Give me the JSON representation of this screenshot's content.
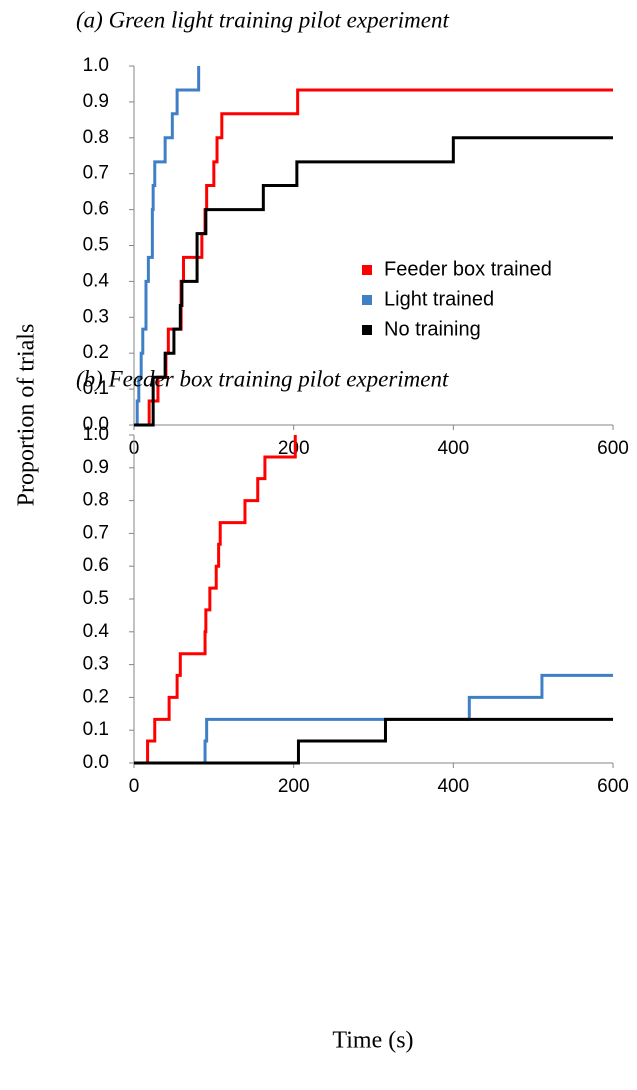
{
  "chart_data": [
    {
      "type": "line",
      "step": true,
      "title": "(a) Green light training pilot experiment",
      "ylabel": "Proportion of trials",
      "xlim": [
        0,
        600
      ],
      "xticks": [
        0,
        200,
        400,
        600
      ],
      "ylim": [
        0,
        1
      ],
      "yticks": [
        {
          "value": 0,
          "label": "0.0"
        },
        0.1,
        0.2,
        0.3,
        0.4,
        0.5,
        0.6,
        0.7,
        0.8,
        0.9,
        {
          "value": 1,
          "label": "1.0"
        }
      ],
      "legend": "center right",
      "series": [
        {
          "name": "Feeder box trained",
          "color": "#ff0000",
          "x": [
            0,
            19,
            30,
            40,
            43,
            59,
            62,
            85,
            89,
            91,
            100,
            104,
            110,
            205,
            600
          ],
          "values": [
            0,
            0.067,
            0.133,
            0.2,
            0.267,
            0.4,
            0.467,
            0.533,
            0.6,
            0.667,
            0.733,
            0.8,
            0.867,
            0.933,
            0.933
          ]
        },
        {
          "name": "Light trained",
          "color": "#3f7fc6",
          "x": [
            0,
            4,
            6,
            9,
            11,
            15,
            18,
            23,
            24,
            26,
            39,
            48,
            54,
            81
          ],
          "values": [
            0,
            0.067,
            0.133,
            0.2,
            0.267,
            0.4,
            0.467,
            0.6,
            0.667,
            0.733,
            0.8,
            0.867,
            0.933,
            1
          ]
        },
        {
          "name": "No training",
          "color": "#000000",
          "x": [
            0,
            24,
            39,
            50,
            58,
            60,
            79,
            90,
            162,
            204,
            400,
            600
          ],
          "values": [
            0,
            0.133,
            0.2,
            0.267,
            0.333,
            0.4,
            0.533,
            0.6,
            0.667,
            0.733,
            0.8,
            0.8
          ]
        }
      ]
    },
    {
      "type": "line",
      "step": true,
      "title": "(b) Feeder box training pilot experiment",
      "xlabel": "Time (s)",
      "xlim": [
        0,
        600
      ],
      "xticks": [
        0,
        200,
        400,
        600
      ],
      "ylim": [
        0,
        1
      ],
      "yticks": [
        {
          "value": 0,
          "label": "0.0"
        },
        0.1,
        0.2,
        0.3,
        0.4,
        0.5,
        0.6,
        0.7,
        0.8,
        0.9,
        {
          "value": 1,
          "label": "1.0"
        }
      ],
      "series": [
        {
          "color": "#ff0000",
          "x": [
            0,
            17,
            26,
            44,
            54,
            58,
            89,
            90,
            95,
            103,
            106,
            108,
            139,
            155,
            164,
            202
          ],
          "values": [
            0,
            0.067,
            0.133,
            0.2,
            0.267,
            0.333,
            0.4,
            0.467,
            0.533,
            0.6,
            0.667,
            0.733,
            0.8,
            0.867,
            0.933,
            1
          ]
        },
        {
          "color": "#3f7fc6",
          "x": [
            0,
            89,
            91,
            420,
            511,
            600
          ],
          "values": [
            0,
            0.067,
            0.133,
            0.2,
            0.267,
            0.267
          ]
        },
        {
          "color": "#000000",
          "x": [
            0,
            206,
            315,
            600
          ],
          "values": [
            0,
            0.067,
            0.133,
            0.133
          ]
        }
      ]
    }
  ]
}
